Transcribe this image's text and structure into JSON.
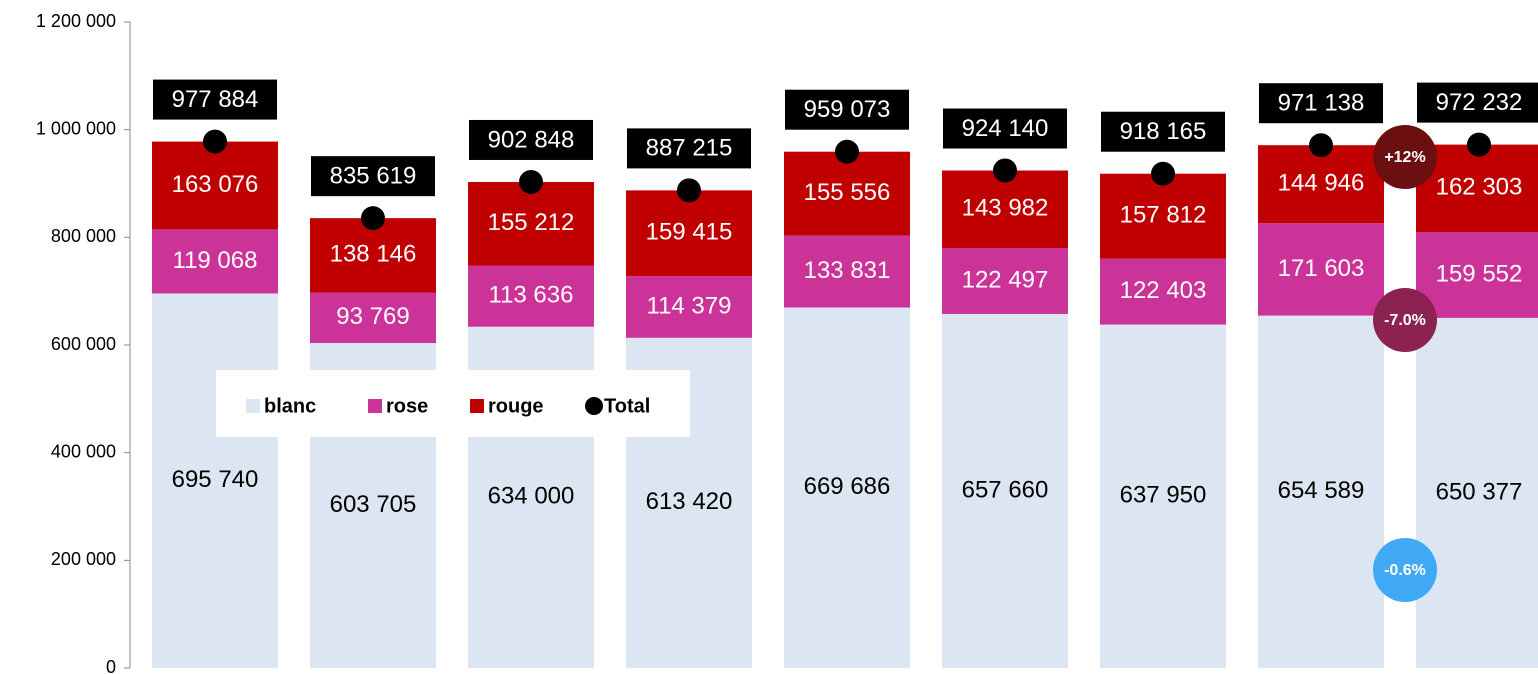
{
  "chart_data": {
    "type": "bar",
    "stacked": true,
    "categories": [
      null,
      null,
      null,
      null,
      null,
      null,
      null,
      null,
      null
    ],
    "series": [
      {
        "name": "blanc",
        "color": "#dce6f2",
        "values": [
          695740,
          603705,
          634000,
          613420,
          669686,
          657660,
          637950,
          654589,
          650377
        ],
        "value_labels": [
          "695 740",
          "603 705",
          "634 000",
          "613 420",
          "669 686",
          "657 660",
          "637 950",
          "654 589",
          "650 377"
        ]
      },
      {
        "name": "rose",
        "color": "#cc3399",
        "values": [
          119068,
          93769,
          113636,
          114379,
          133831,
          122497,
          122403,
          171603,
          159552
        ],
        "value_labels": [
          "119 068",
          "93 769",
          "113 636",
          "114 379",
          "133 831",
          "122 497",
          "122 403",
          "171 603",
          "159 552"
        ]
      },
      {
        "name": "rouge",
        "color": "#c00000",
        "values": [
          163076,
          138146,
          155212,
          159415,
          155556,
          143982,
          157812,
          144946,
          162303
        ],
        "value_labels": [
          "163 076",
          "138 146",
          "155 212",
          "159 415",
          "155 556",
          "143 982",
          "157 812",
          "144 946",
          "162 303"
        ]
      },
      {
        "name": "Total",
        "type": "scatter",
        "color": "#000000",
        "values": [
          977884,
          835619,
          902848,
          887215,
          959073,
          924140,
          918165,
          971138,
          972232
        ],
        "value_labels": [
          "977 884",
          "835 619",
          "902 848",
          "887 215",
          "959 073",
          "924 140",
          "918 165",
          "971 138",
          "972 232"
        ]
      }
    ],
    "ylim": [
      0,
      1200000
    ],
    "yticks": [
      0,
      {
        "value": 200000,
        "label": "200 000"
      },
      {
        "value": 400000,
        "label": "400 000"
      },
      {
        "value": 600000,
        "label": "600 000"
      },
      {
        "value": 800000,
        "label": "800 000"
      },
      {
        "value": 1000000,
        "label": "1 000 000"
      },
      {
        "value": 1200000,
        "label": "1 200 000"
      }
    ],
    "grid": false,
    "legend": "center-left",
    "annotations": [
      {
        "text": "+12%",
        "color": "#6b0f10"
      },
      {
        "text": "-7.0%",
        "color": "#8b2252"
      },
      {
        "text": "-0.6%",
        "color": "#3fa9f5"
      }
    ]
  }
}
